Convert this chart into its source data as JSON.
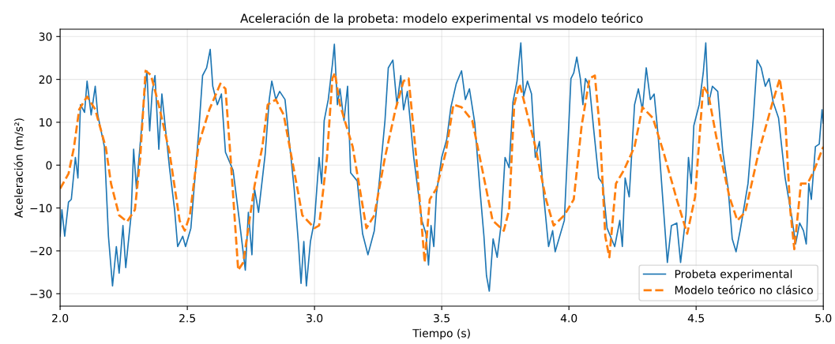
{
  "chart_data": {
    "type": "line",
    "title": "Aceleración de la probeta: modelo experimental vs modelo teórico",
    "xlabel": "Tiempo (s)",
    "ylabel": "Aceleración (m/s²)",
    "xlim": [
      2.0,
      5.0
    ],
    "ylim": [
      -32.9,
      31.7
    ],
    "xticks": [
      {
        "value": 2.0,
        "label": "2.0"
      },
      {
        "value": 2.5,
        "label": "2.5"
      },
      {
        "value": 3.0,
        "label": "3.0"
      },
      {
        "value": 3.5,
        "label": "3.5"
      },
      {
        "value": 4.0,
        "label": "4.0"
      },
      {
        "value": 4.5,
        "label": "4.5"
      },
      {
        "value": 5.0,
        "label": "5.0"
      }
    ],
    "yticks": [
      {
        "value": -30,
        "label": "−30"
      },
      {
        "value": -20,
        "label": "−20"
      },
      {
        "value": -10,
        "label": "−10"
      },
      0,
      10,
      20,
      30
    ],
    "grid": true,
    "legend": "bottom right",
    "series": [
      {
        "name": "Probeta experimental",
        "color": "#1f77b4",
        "line_style": "solid",
        "x": [
          2.0,
          2.007,
          2.018,
          2.033,
          2.044,
          2.06,
          2.07,
          2.08,
          2.096,
          2.106,
          2.122,
          2.138,
          2.148,
          2.174,
          2.19,
          2.206,
          2.221,
          2.232,
          2.247,
          2.258,
          2.279,
          2.289,
          2.3,
          2.326,
          2.341,
          2.352,
          2.362,
          2.373,
          2.388,
          2.4,
          2.43,
          2.45,
          2.462,
          2.482,
          2.493,
          2.514,
          2.545,
          2.56,
          2.576,
          2.59,
          2.6,
          2.618,
          2.634,
          2.65,
          2.68,
          2.707,
          2.728,
          2.74,
          2.754,
          2.764,
          2.78,
          2.806,
          2.822,
          2.832,
          2.848,
          2.863,
          2.884,
          2.92,
          2.937,
          2.947,
          2.958,
          2.968,
          2.984,
          3.0,
          3.018,
          3.028,
          3.038,
          3.054,
          3.07,
          3.078,
          3.09,
          3.1,
          3.116,
          3.13,
          3.142,
          3.168,
          3.189,
          3.21,
          3.235,
          3.256,
          3.277,
          3.29,
          3.308,
          3.324,
          3.339,
          3.35,
          3.365,
          3.39,
          3.422,
          3.438,
          3.448,
          3.458,
          3.469,
          3.479,
          3.5,
          3.52,
          3.536,
          3.557,
          3.578,
          3.593,
          3.609,
          3.63,
          3.65,
          3.666,
          3.676,
          3.687,
          3.702,
          3.718,
          3.733,
          3.749,
          3.765,
          3.78,
          3.796,
          3.811,
          3.822,
          3.837,
          3.853,
          3.868,
          3.884,
          3.9,
          3.92,
          3.936,
          3.946,
          3.982,
          4.008,
          4.019,
          4.031,
          4.045,
          4.055,
          4.065,
          4.081,
          4.097,
          4.117,
          4.133,
          4.15,
          4.18,
          4.2,
          4.21,
          4.221,
          4.237,
          4.258,
          4.273,
          4.289,
          4.304,
          4.32,
          4.335,
          4.351,
          4.372,
          4.387,
          4.403,
          4.424,
          4.439,
          4.46,
          4.47,
          4.481,
          4.491,
          4.512,
          4.528,
          4.538,
          4.548,
          4.564,
          4.585,
          4.605,
          4.626,
          4.642,
          4.657,
          4.673,
          4.704,
          4.725,
          4.74,
          4.756,
          4.772,
          4.787,
          4.803,
          4.824,
          4.85,
          4.875,
          4.891,
          4.907,
          4.922,
          4.933,
          4.943,
          4.953,
          4.969,
          4.984,
          4.995,
          5.0
        ],
        "values": [
          -16.6,
          -10.4,
          -16.6,
          -8.6,
          -8,
          1.8,
          -3,
          14.1,
          12.3,
          19.6,
          11.7,
          18.4,
          11.7,
          4.3,
          -16.6,
          -28.2,
          -19,
          -25.2,
          -14.1,
          -23.9,
          -11.7,
          3.7,
          -5.5,
          12.9,
          22,
          8,
          17.2,
          20.9,
          3.7,
          16.6,
          -0.6,
          -10.4,
          -19,
          -16.6,
          -19,
          -14.7,
          8,
          20.9,
          22.7,
          27,
          18.4,
          14.1,
          16.6,
          3,
          -1.2,
          -14.1,
          -24.5,
          -11,
          -20.9,
          -5.5,
          -11,
          2.5,
          15.3,
          19.6,
          15.3,
          17.2,
          15.3,
          -5.5,
          -18.4,
          -27.6,
          -17.8,
          -28.2,
          -17.8,
          -12.9,
          1.8,
          -4.3,
          10.4,
          15.3,
          23.3,
          28.2,
          14.1,
          17.8,
          10.4,
          18.4,
          -1.8,
          -3.7,
          -16,
          -20.9,
          -15.3,
          -3,
          10.4,
          22.7,
          24.5,
          14.1,
          20.9,
          12.9,
          17.2,
          1.8,
          -12.9,
          -16,
          -23.3,
          -14.1,
          -19,
          -6.7,
          1.8,
          6.1,
          13.5,
          19,
          22,
          15.3,
          17.8,
          9.8,
          -5.5,
          -16.6,
          -25.8,
          -29.4,
          -17.2,
          -21.5,
          -14.1,
          1.8,
          -0.6,
          14.7,
          19.6,
          28.5,
          16,
          19.6,
          16.6,
          1.8,
          5.5,
          -6.7,
          -19,
          -15.3,
          -20.2,
          -12.9,
          20.2,
          21.5,
          25.2,
          20.2,
          14.1,
          20.2,
          18.4,
          8.6,
          -3,
          -4.3,
          -14.7,
          -19,
          -12.9,
          -19,
          -3,
          -7.4,
          14.1,
          17.8,
          12.9,
          22.7,
          15.3,
          16.6,
          6.7,
          -10.4,
          -22.7,
          -14.1,
          -13.5,
          -22.7,
          -11.7,
          1.8,
          -4.3,
          9.2,
          14.1,
          21.5,
          28.5,
          14.1,
          18.4,
          17.2,
          3,
          -5.5,
          -17.2,
          -20.2,
          -15.3,
          -4.3,
          11,
          24.5,
          22.7,
          18.4,
          20.2,
          14.7,
          11,
          -3,
          -11.7,
          -18.4,
          -13.5,
          -15.3,
          -18.4,
          -4.3,
          -8,
          4.3,
          4.9,
          12.9,
          9.8
        ]
      },
      {
        "name": "Modelo teórico no clásico",
        "color": "#ff7f0e",
        "line_style": "dashed",
        "x": [
          2.0,
          2.033,
          2.054,
          2.075,
          2.106,
          2.138,
          2.18,
          2.2,
          2.232,
          2.263,
          2.294,
          2.315,
          2.336,
          2.357,
          2.388,
          2.43,
          2.47,
          2.49,
          2.51,
          2.545,
          2.587,
          2.63,
          2.65,
          2.67,
          2.7,
          2.72,
          2.764,
          2.795,
          2.816,
          2.848,
          2.879,
          2.91,
          2.952,
          3.0,
          3.018,
          3.049,
          3.07,
          3.08,
          3.1,
          3.15,
          3.204,
          3.235,
          3.277,
          3.318,
          3.35,
          3.37,
          3.4,
          3.433,
          3.453,
          3.479,
          3.516,
          3.546,
          3.578,
          3.62,
          3.66,
          3.7,
          3.744,
          3.765,
          3.785,
          3.806,
          3.827,
          3.868,
          3.91,
          3.94,
          3.982,
          4.019,
          4.05,
          4.081,
          4.102,
          4.122,
          4.143,
          4.159,
          4.185,
          4.216,
          4.258,
          4.289,
          4.33,
          4.372,
          4.424,
          4.465,
          4.496,
          4.528,
          4.548,
          4.579,
          4.631,
          4.662,
          4.693,
          4.746,
          4.798,
          4.829,
          4.85,
          4.87,
          4.886,
          4.912,
          4.938,
          4.964,
          5.0
        ],
        "values": [
          -5.5,
          -2,
          4,
          13,
          16,
          13,
          4,
          -4.3,
          -11.7,
          -13.2,
          -10.4,
          1.8,
          22,
          21,
          14,
          3,
          -13,
          -15.3,
          -11.7,
          5,
          13,
          19,
          17.8,
          1.8,
          -24.5,
          -22.7,
          -4.9,
          4.3,
          14.1,
          15.3,
          11.7,
          1.8,
          -11.7,
          -14.7,
          -14.1,
          1.8,
          20.2,
          21.5,
          14.1,
          4.3,
          -14.7,
          -11.7,
          1.8,
          12.9,
          19.6,
          20.2,
          1.8,
          -22.7,
          -8,
          -5.5,
          3,
          14.1,
          13.5,
          10.4,
          -1.2,
          -12.9,
          -15.3,
          -10.4,
          14.1,
          19,
          14.1,
          4.3,
          -8,
          -14.1,
          -11.7,
          -8,
          9.2,
          20.2,
          20.9,
          8,
          -16.6,
          -21.5,
          -4.3,
          -1.2,
          4.3,
          13.5,
          11,
          3,
          -8,
          -16,
          -7.4,
          18.4,
          16.6,
          6.7,
          -7.4,
          -12.9,
          -11,
          3,
          14.1,
          20.2,
          11,
          -10.4,
          -19.6,
          -4.3,
          -4.3,
          -1.2,
          4.3
        ]
      }
    ]
  }
}
